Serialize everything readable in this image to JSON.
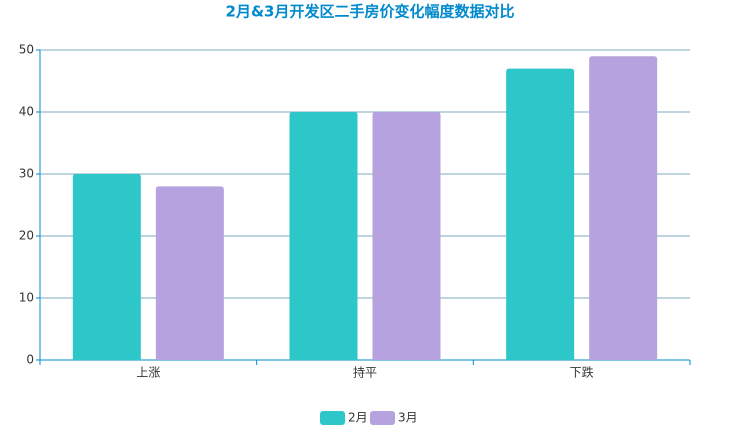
{
  "chart_data": {
    "type": "bar",
    "title": "2月&3月开发区二手房价变化幅度数据对比",
    "categories": [
      "上涨",
      "持平",
      "下跌"
    ],
    "series": [
      {
        "name": "2月",
        "color": "#2ec7c9",
        "values": [
          30,
          40,
          47
        ]
      },
      {
        "name": "3月",
        "color": "#b6a2de",
        "values": [
          28,
          40,
          49
        ]
      }
    ],
    "ylim": [
      0,
      50
    ],
    "yticks": [
      0,
      10,
      20,
      30,
      40,
      50
    ],
    "grid": true,
    "legend": "bottom"
  }
}
